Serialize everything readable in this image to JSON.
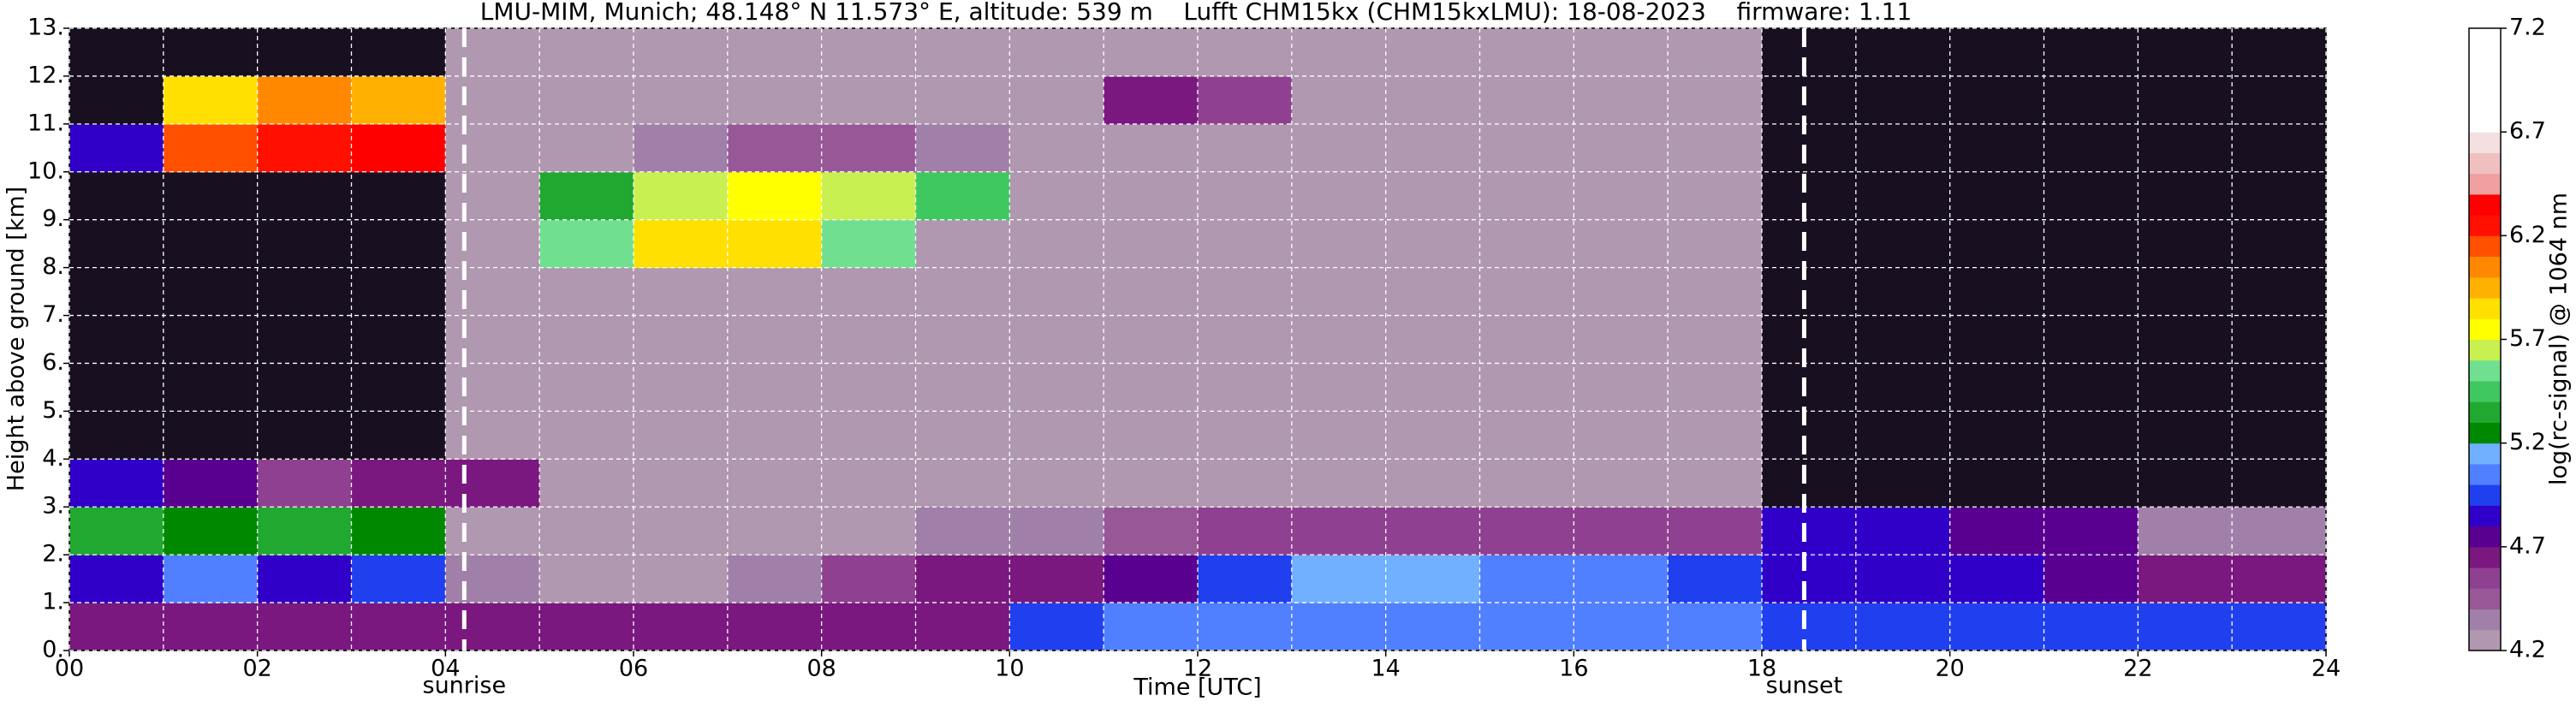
{
  "chart_data": {
    "type": "heatmap",
    "title": "LMU-MIM, Munich; 48.148° N 11.573° E, altitude: 539 m    Lufft CHM15kx (CHM15kxLMU): 18-08-2023    firmware: 1.11",
    "x_label": "Time [UTC]",
    "y_label": "Height above ground [km]",
    "x": [
      0,
      1,
      2,
      3,
      4,
      5,
      6,
      7,
      8,
      9,
      10,
      11,
      12,
      13,
      14,
      15,
      16,
      17,
      18,
      19,
      20,
      21,
      22,
      23
    ],
    "y": [
      0,
      1,
      2,
      3,
      4,
      5,
      6,
      7,
      8,
      9,
      10,
      11,
      12
    ],
    "xlim": [
      0,
      24
    ],
    "ylim": [
      0,
      13
    ],
    "xticks": [
      {
        "value": 0,
        "label": "00"
      },
      {
        "value": 2,
        "label": "02"
      },
      {
        "value": 4,
        "label": "04"
      },
      {
        "value": 6,
        "label": "06"
      },
      {
        "value": 8,
        "label": "08"
      },
      10,
      12,
      14,
      16,
      18,
      20,
      22,
      24
    ],
    "xminorticks": [
      1,
      3,
      5,
      7,
      9,
      11,
      13,
      15,
      17,
      19,
      21,
      23
    ],
    "yticks": [
      {
        "value": 0,
        "label": "0."
      },
      {
        "value": 1,
        "label": "1."
      },
      {
        "value": 2,
        "label": "2."
      },
      {
        "value": 3,
        "label": "3."
      },
      {
        "value": 4,
        "label": "4."
      },
      {
        "value": 5,
        "label": "5."
      },
      {
        "value": 6,
        "label": "6."
      },
      {
        "value": 7,
        "label": "7."
      },
      {
        "value": 8,
        "label": "8."
      },
      {
        "value": 9,
        "label": "9."
      },
      {
        "value": 10,
        "label": "10."
      },
      {
        "value": 11,
        "label": "11."
      },
      {
        "value": 12,
        "label": "12."
      },
      {
        "value": 13,
        "label": "13."
      }
    ],
    "grid": true,
    "z": [
      [
        4.6,
        4.6,
        4.6,
        4.6,
        4.6,
        4.6,
        4.6,
        4.6,
        4.6,
        4.65,
        4.9,
        5.0,
        5.0,
        5.0,
        5.0,
        5.0,
        5.0,
        5.0,
        4.95,
        4.9,
        4.9,
        4.9,
        4.9,
        4.9
      ],
      [
        4.8,
        5.0,
        4.85,
        4.9,
        4.3,
        4.25,
        4.25,
        4.3,
        4.5,
        4.6,
        4.65,
        4.75,
        4.9,
        5.1,
        5.1,
        5.0,
        5.0,
        4.9,
        4.8,
        4.85,
        4.85,
        4.7,
        4.65,
        4.65
      ],
      [
        5.3,
        5.25,
        5.3,
        5.2,
        4.25,
        4.2,
        4.2,
        4.2,
        4.25,
        4.3,
        4.3,
        4.4,
        4.5,
        4.5,
        4.55,
        4.55,
        4.5,
        4.5,
        4.8,
        4.8,
        4.75,
        4.7,
        4.3,
        4.3
      ],
      [
        4.85,
        4.7,
        4.5,
        4.6,
        4.6,
        4.25,
        4.25,
        4.25,
        4.25,
        4.25,
        4.25,
        4.25,
        4.25,
        4.25,
        4.25,
        4.25,
        4.25,
        4.25,
        4.0,
        3.9,
        3.9,
        3.9,
        3.9,
        3.9
      ],
      [
        3.9,
        3.9,
        3.9,
        3.9,
        4.25,
        4.25,
        4.25,
        4.25,
        4.25,
        4.25,
        4.25,
        4.25,
        4.25,
        4.25,
        4.25,
        4.25,
        4.25,
        4.25,
        3.9,
        3.9,
        3.9,
        3.9,
        3.9,
        3.9
      ],
      [
        3.9,
        3.9,
        3.9,
        3.9,
        4.25,
        4.25,
        4.25,
        4.25,
        4.25,
        4.25,
        4.25,
        4.25,
        4.25,
        4.25,
        4.25,
        4.25,
        4.25,
        4.25,
        3.9,
        3.9,
        3.9,
        3.9,
        3.9,
        3.9
      ],
      [
        3.9,
        3.9,
        3.9,
        3.9,
        4.25,
        4.25,
        4.25,
        4.25,
        4.25,
        4.25,
        4.25,
        4.25,
        4.25,
        4.25,
        4.25,
        4.25,
        4.25,
        4.25,
        3.9,
        3.9,
        3.9,
        3.9,
        3.9,
        3.9
      ],
      [
        3.9,
        3.9,
        3.9,
        3.9,
        4.25,
        4.25,
        4.25,
        4.25,
        4.25,
        4.25,
        4.25,
        4.25,
        4.25,
        4.25,
        4.25,
        4.25,
        4.25,
        4.25,
        3.9,
        3.9,
        3.9,
        3.9,
        3.9,
        3.9
      ],
      [
        3.9,
        3.9,
        3.9,
        3.9,
        4.25,
        5.5,
        5.8,
        5.8,
        5.5,
        4.25,
        4.25,
        4.25,
        4.25,
        4.25,
        4.25,
        4.25,
        4.25,
        4.25,
        3.9,
        3.9,
        3.9,
        3.9,
        3.9,
        3.9
      ],
      [
        3.9,
        3.9,
        3.9,
        3.9,
        4.25,
        5.3,
        5.6,
        5.7,
        5.6,
        5.4,
        4.25,
        4.25,
        4.25,
        4.25,
        4.25,
        4.25,
        4.25,
        4.25,
        3.9,
        3.9,
        3.9,
        3.9,
        3.9,
        3.9
      ],
      [
        4.8,
        6.1,
        6.2,
        6.3,
        4.25,
        4.25,
        4.3,
        4.4,
        4.4,
        4.3,
        4.25,
        4.25,
        4.25,
        4.25,
        4.25,
        4.25,
        4.25,
        4.25,
        3.9,
        3.9,
        3.9,
        3.9,
        3.9,
        3.9
      ],
      [
        3.9,
        5.8,
        6.0,
        5.9,
        4.25,
        4.25,
        4.25,
        4.25,
        4.25,
        4.25,
        4.25,
        4.6,
        4.5,
        4.25,
        4.25,
        4.25,
        4.25,
        4.25,
        3.9,
        3.9,
        3.9,
        3.9,
        3.9,
        3.9
      ],
      [
        3.9,
        3.9,
        3.9,
        3.9,
        4.25,
        4.25,
        4.25,
        4.25,
        4.25,
        4.25,
        4.25,
        4.25,
        4.25,
        4.25,
        4.25,
        4.25,
        4.25,
        4.25,
        3.9,
        3.9,
        3.9,
        3.9,
        3.9,
        3.9
      ]
    ],
    "annotations": [
      {
        "x": 4.2,
        "text": "sunrise"
      },
      {
        "x": 18.45,
        "text": "sunset"
      }
    ],
    "colorbar": {
      "label": "log(rc-signal) @ 1064 nm",
      "levels": [
        4.2,
        4.3,
        4.4,
        4.5,
        4.6,
        4.7,
        4.8,
        4.9,
        5.0,
        5.1,
        5.2,
        5.3,
        5.4,
        5.5,
        5.6,
        5.7,
        5.8,
        5.9,
        6.0,
        6.1,
        6.2,
        6.3,
        6.4,
        6.5,
        6.6,
        6.7,
        6.8,
        6.9,
        7.0,
        7.1,
        7.2
      ],
      "colors": [
        "#b098b0",
        "#a080a8",
        "#985898",
        "#904090",
        "#7a1880",
        "#5a0090",
        "#3000c8",
        "#2040f0",
        "#5080ff",
        "#70b0ff",
        "#008800",
        "#20a830",
        "#40c860",
        "#70e090",
        "#c8f050",
        "#ffff00",
        "#ffe000",
        "#ffb000",
        "#ff8800",
        "#ff5000",
        "#ff1000",
        "#ff0000",
        "#f0a0a0",
        "#f0c0c0",
        "#f4e0e0",
        "#ffffff",
        "#ffffff",
        "#ffffff",
        "#ffffff",
        "#ffffff"
      ],
      "ticks": [
        4.2,
        4.7,
        5.2,
        5.7,
        6.2,
        6.7,
        7.2
      ],
      "under_color": "#181020"
    }
  }
}
